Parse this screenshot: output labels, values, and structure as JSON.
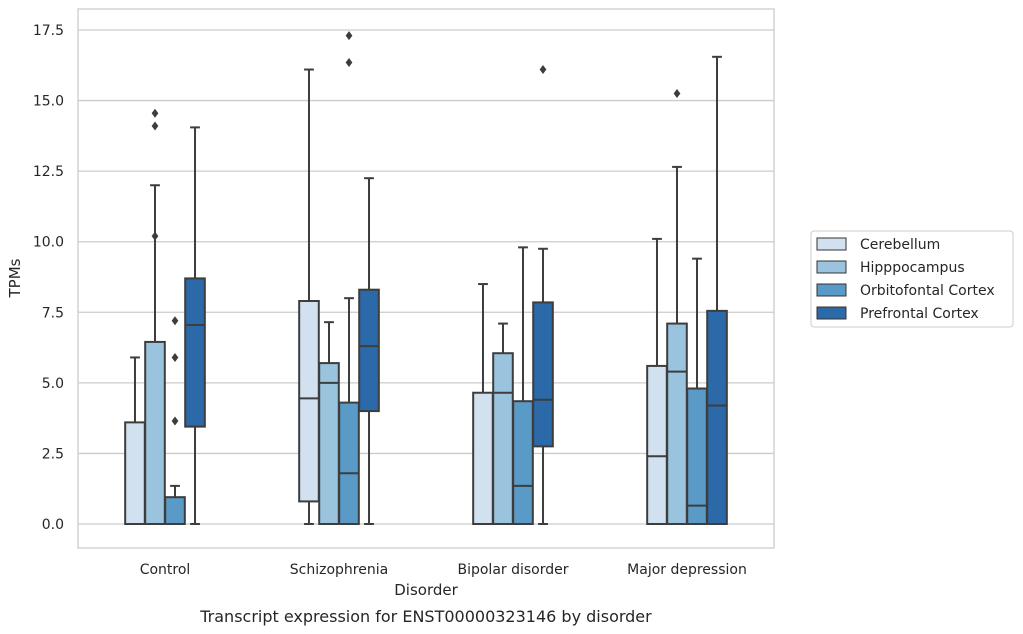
{
  "chart_data": {
    "type": "box",
    "caption": "Transcript expression for ENST00000323146 by disorder",
    "xlabel": "Disorder",
    "ylabel": "TPMs",
    "ylim": [
      -0.8,
      18.2
    ],
    "yticks": [
      "0.0",
      "2.5",
      "5.0",
      "7.5",
      "10.0",
      "12.5",
      "15.0",
      "17.5"
    ],
    "grid": "horizontal",
    "legend_position": "right",
    "categories": [
      "Control",
      "Schizophrenia",
      "Bipolar disorder",
      "Major depression"
    ],
    "series": [
      {
        "name": "Cerebellum",
        "color": "#d1e1f0",
        "boxes": [
          {
            "q1": 0,
            "median": 0,
            "q3": 3.6,
            "whisker_low": 0,
            "whisker_high": 5.9,
            "outliers": []
          },
          {
            "q1": 0.8,
            "median": 4.45,
            "q3": 7.9,
            "whisker_low": 0,
            "whisker_high": 16.1,
            "outliers": []
          },
          {
            "q1": 0,
            "median": 0,
            "q3": 4.65,
            "whisker_low": 0,
            "whisker_high": 8.5,
            "outliers": []
          },
          {
            "q1": 0,
            "median": 2.4,
            "q3": 5.6,
            "whisker_low": 0,
            "whisker_high": 10.1,
            "outliers": []
          }
        ]
      },
      {
        "name": "Hipppocampus",
        "color": "#9ac4de",
        "boxes": [
          {
            "q1": 0,
            "median": 0,
            "q3": 6.45,
            "whisker_low": 0,
            "whisker_high": 12.0,
            "outliers": [
              14.55,
              14.1,
              10.2
            ]
          },
          {
            "q1": 0,
            "median": 5.0,
            "q3": 5.7,
            "whisker_low": 0,
            "whisker_high": 7.15,
            "outliers": []
          },
          {
            "q1": 0,
            "median": 4.65,
            "q3": 6.05,
            "whisker_low": 0,
            "whisker_high": 7.1,
            "outliers": []
          },
          {
            "q1": 0,
            "median": 5.4,
            "q3": 7.1,
            "whisker_low": 0,
            "whisker_high": 12.65,
            "outliers": [
              15.25
            ]
          }
        ]
      },
      {
        "name": "Orbitofontal Cortex",
        "color": "#5a9ac6",
        "boxes": [
          {
            "q1": 0,
            "median": 0,
            "q3": 0.95,
            "whisker_low": 0,
            "whisker_high": 1.35,
            "outliers": [
              7.2,
              5.9,
              3.65
            ]
          },
          {
            "q1": 0,
            "median": 1.8,
            "q3": 4.3,
            "whisker_low": 0,
            "whisker_high": 8.0,
            "outliers": [
              17.3,
              16.35
            ]
          },
          {
            "q1": 0,
            "median": 1.35,
            "q3": 4.35,
            "whisker_low": 0,
            "whisker_high": 9.8,
            "outliers": []
          },
          {
            "q1": 0,
            "median": 0.65,
            "q3": 4.8,
            "whisker_low": 0,
            "whisker_high": 9.4,
            "outliers": []
          }
        ]
      },
      {
        "name": "Prefrontal Cortex",
        "color": "#2b69a8",
        "boxes": [
          {
            "q1": 3.45,
            "median": 7.05,
            "q3": 8.7,
            "whisker_low": 0,
            "whisker_high": 14.05,
            "outliers": []
          },
          {
            "q1": 4.0,
            "median": 6.3,
            "q3": 8.3,
            "whisker_low": 0,
            "whisker_high": 12.25,
            "outliers": []
          },
          {
            "q1": 2.75,
            "median": 4.4,
            "q3": 7.85,
            "whisker_low": 0,
            "whisker_high": 9.75,
            "outliers": [
              16.1
            ]
          },
          {
            "q1": 0,
            "median": 4.2,
            "q3": 7.55,
            "whisker_low": 0,
            "whisker_high": 16.55,
            "outliers": []
          }
        ]
      }
    ]
  }
}
